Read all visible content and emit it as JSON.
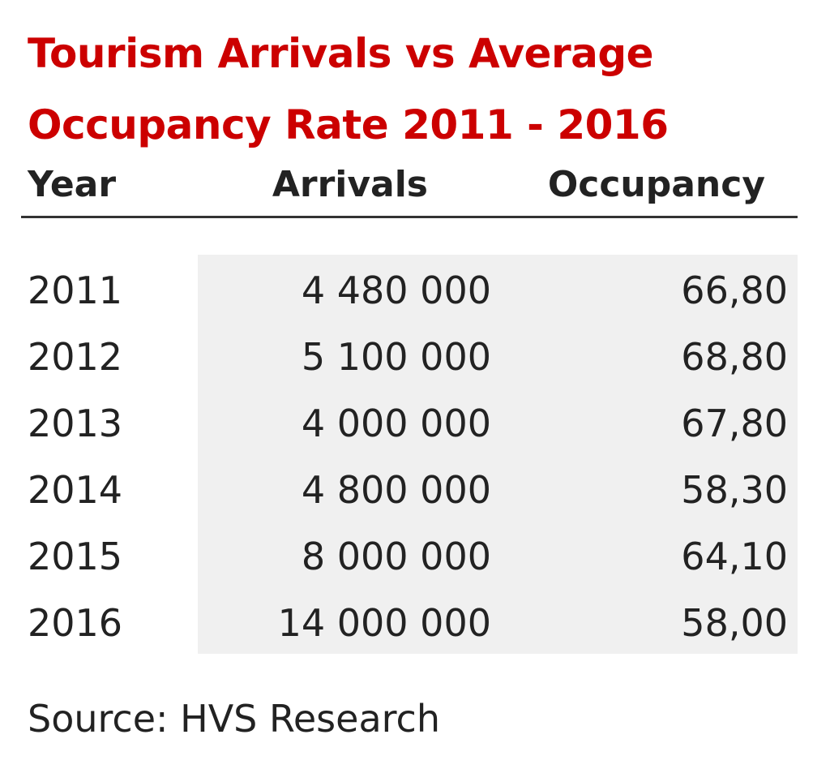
{
  "chart_data": {
    "type": "table",
    "title_lines": [
      "Tourism Arrivals vs Average",
      "Occupancy Rate 2011 - 2016"
    ],
    "columns": [
      "Year",
      "Arrivals",
      "Occupancy"
    ],
    "rows": [
      {
        "year": "2011",
        "arrivals": "4 480 000",
        "occupancy": "66,80"
      },
      {
        "year": "2012",
        "arrivals": "5 100 000",
        "occupancy": "68,80"
      },
      {
        "year": "2013",
        "arrivals": "4 000 000",
        "occupancy": "67,80"
      },
      {
        "year": "2014",
        "arrivals": "4 800 000",
        "occupancy": "58,30"
      },
      {
        "year": "2015",
        "arrivals": "8 000 000",
        "occupancy": "64,10"
      },
      {
        "year": "2016",
        "arrivals": "14 000 000",
        "occupancy": "58,00"
      }
    ],
    "source": "Source: HVS Research"
  },
  "colors": {
    "title": "#cc0000",
    "text": "#222222",
    "row_shading": "#f0f0f0",
    "rule": "#333333"
  }
}
